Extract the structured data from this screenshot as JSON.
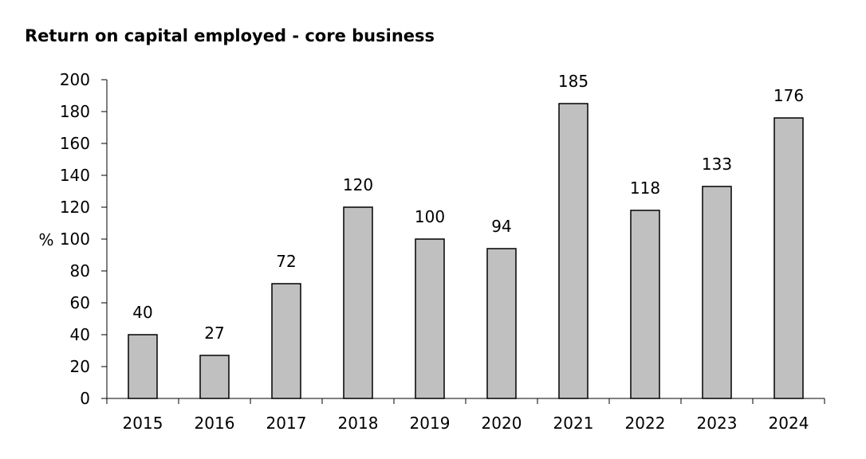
{
  "chart_data": {
    "type": "bar",
    "title": "Return on capital employed - core business",
    "xlabel": "",
    "ylabel": "%",
    "categories": [
      "2015",
      "2016",
      "2017",
      "2018",
      "2019",
      "2020",
      "2021",
      "2022",
      "2023",
      "2024"
    ],
    "values": [
      40,
      27,
      72,
      120,
      100,
      94,
      185,
      118,
      133,
      176
    ],
    "data_labels": [
      "40",
      "27",
      "72",
      "120",
      "100",
      "94",
      "185",
      "118",
      "133",
      "176"
    ],
    "ylim": [
      0,
      200
    ],
    "yticks": [
      0,
      20,
      40,
      60,
      80,
      100,
      120,
      140,
      160,
      180,
      200
    ],
    "ytick_labels": [
      "0",
      "20",
      "40",
      "60",
      "80",
      "100",
      "120",
      "140",
      "160",
      "180",
      "200"
    ],
    "grid": false,
    "legend": "none",
    "colors": {
      "bar_fill": "#c0c0c0",
      "bar_stroke": "#000000",
      "axis": "#000000"
    }
  }
}
